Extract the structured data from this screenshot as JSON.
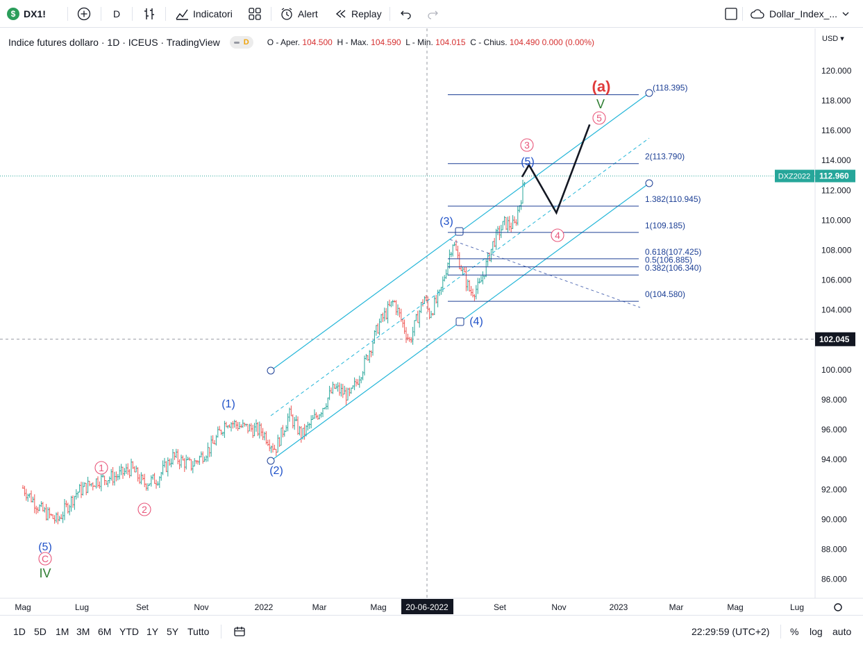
{
  "toolbar": {
    "symbol": "DX1!",
    "interval": "D",
    "indicators": "Indicatori",
    "alert": "Alert",
    "replay": "Replay",
    "layout_name": "Dollar_Index_..."
  },
  "legend": {
    "title": "Indice futures dollaro · 1D · ICEUS · TradingView",
    "badge": "D",
    "ohlc": [
      {
        "label": "O - Aper.",
        "value": "104.500"
      },
      {
        "label": "H - Max.",
        "value": "104.590"
      },
      {
        "label": "L - Min.",
        "value": "104.015"
      },
      {
        "label": "C - Chius.",
        "value": "104.490"
      }
    ],
    "change": "0.000 (0.00%)"
  },
  "price_scale": {
    "currency": "USD",
    "labels": [
      "120.000",
      "118.000",
      "116.000",
      "114.000",
      "112.000",
      "110.000",
      "108.000",
      "106.000",
      "104.000",
      "102.000",
      "100.000",
      "98.000",
      "96.000",
      "94.000",
      "92.000",
      "90.000",
      "88.000",
      "86.000"
    ],
    "last_tag": "DXZ2022",
    "last_price": "112.960",
    "crosshair_price": "102.045"
  },
  "time_axis": {
    "labels": [
      "Mag",
      "Lug",
      "Set",
      "Nov",
      "2022",
      "Mar",
      "Mag",
      "Set",
      "Nov",
      "2023",
      "Mar",
      "Mag",
      "Lug"
    ],
    "crosshair_date": "20-06-2022"
  },
  "fib_levels": [
    {
      "label": "(118.395)",
      "price": 118.395
    },
    {
      "label": "2(113.790)",
      "price": 113.79
    },
    {
      "label": "1.382(110.945)",
      "price": 110.945
    },
    {
      "label": "1(109.185)",
      "price": 109.185
    },
    {
      "label": "0.618(107.425)",
      "price": 107.425
    },
    {
      "label": "0.5(106.885)",
      "price": 106.885
    },
    {
      "label": "0.382(106.340)",
      "price": 106.34
    },
    {
      "label": "0(104.580)",
      "price": 104.58
    }
  ],
  "wave_labels": {
    "a": "(a)",
    "v": "V",
    "w5": "5",
    "w3": "3",
    "w4": "4",
    "w1": "1",
    "w2": "2",
    "p5": "(5)",
    "p3": "(3)",
    "p4": "(4)",
    "p1": "(1)",
    "p2": "(2)",
    "pc5": "(5)",
    "c": "C",
    "iv": "IV"
  },
  "bottom": {
    "ranges": [
      "1D",
      "5D",
      "1M",
      "3M",
      "6M",
      "YTD",
      "1Y",
      "5Y",
      "Tutto"
    ],
    "clock": "22:29:59 (UTC+2)",
    "percent": "%",
    "log": "log",
    "auto": "auto"
  },
  "colors": {
    "up": "#26a69a",
    "down": "#ef5350",
    "channel": "#22b5d8",
    "fib": "#1c3f95",
    "wave_pink": "#e8567a",
    "wave_blue": "#1e50c8",
    "wave_green": "#2e7d32",
    "price_tag": "#26a69a"
  },
  "chart_data": {
    "type": "candlestick",
    "title": "Indice futures dollaro",
    "x_range": [
      "2021-05",
      "2023-07"
    ],
    "ylim": [
      85.5,
      121.5
    ],
    "anchors": [
      [
        "2021-05-01",
        92.1
      ],
      [
        "2021-05-20",
        90.6
      ],
      [
        "2021-06-05",
        89.9
      ],
      [
        "2021-06-25",
        91.8
      ],
      [
        "2021-07-15",
        92.6
      ],
      [
        "2021-08-05",
        92.9
      ],
      [
        "2021-08-20",
        93.4
      ],
      [
        "2021-09-01",
        92.4
      ],
      [
        "2021-09-15",
        92.7
      ],
      [
        "2021-10-01",
        94.2
      ],
      [
        "2021-10-20",
        93.6
      ],
      [
        "2021-11-10",
        94.9
      ],
      [
        "2021-11-25",
        96.6
      ],
      [
        "2021-12-10",
        96.2
      ],
      [
        "2021-12-31",
        95.9
      ],
      [
        "2022-01-14",
        94.7
      ],
      [
        "2022-01-28",
        97.0
      ],
      [
        "2022-02-10",
        95.6
      ],
      [
        "2022-03-01",
        97.3
      ],
      [
        "2022-03-15",
        98.8
      ],
      [
        "2022-03-31",
        98.2
      ],
      [
        "2022-04-15",
        100.4
      ],
      [
        "2022-04-30",
        103.1
      ],
      [
        "2022-05-15",
        104.6
      ],
      [
        "2022-05-31",
        101.9
      ],
      [
        "2022-06-15",
        104.9
      ],
      [
        "2022-06-20",
        103.7
      ],
      [
        "2022-07-01",
        105.0
      ],
      [
        "2022-07-14",
        108.6
      ],
      [
        "2022-07-25",
        106.4
      ],
      [
        "2022-08-01",
        105.2
      ],
      [
        "2022-08-10",
        105.5
      ],
      [
        "2022-08-25",
        108.6
      ],
      [
        "2022-09-05",
        109.8
      ],
      [
        "2022-09-15",
        109.6
      ],
      [
        "2022-09-27",
        113.0
      ]
    ],
    "projection": [
      [
        "2022-09-30",
        113.7
      ],
      [
        "2022-10-28",
        110.5
      ],
      [
        "2022-12-01",
        116.4
      ]
    ]
  }
}
